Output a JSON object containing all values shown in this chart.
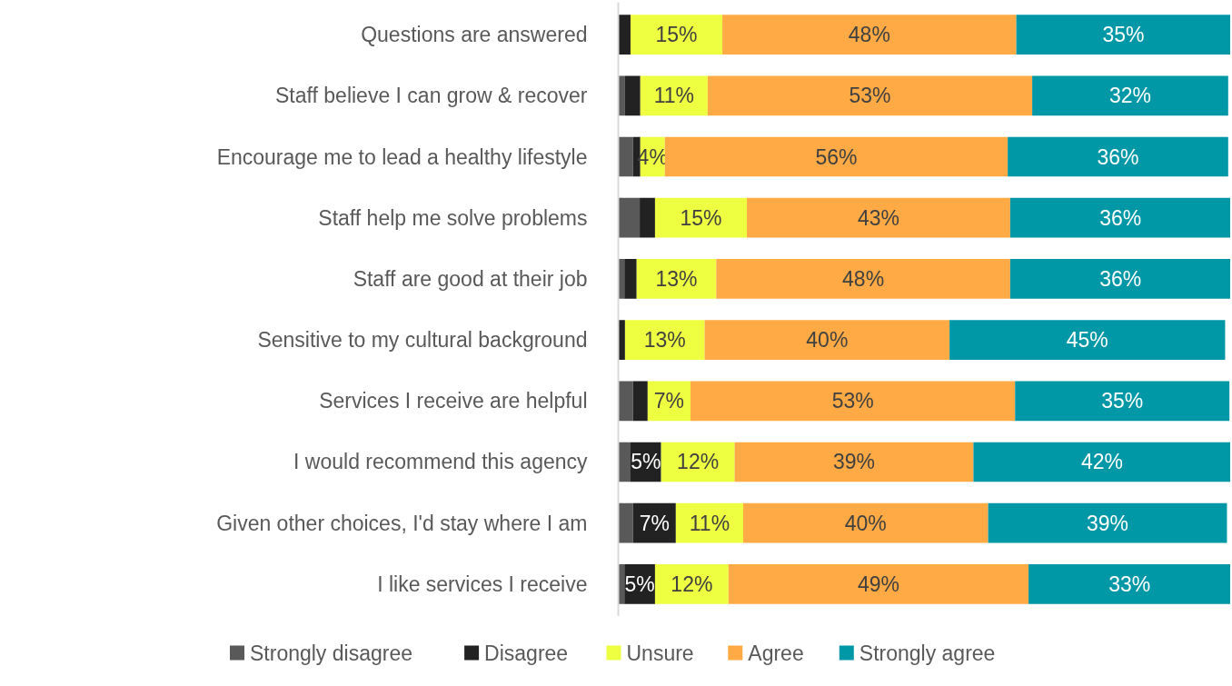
{
  "chart_data": {
    "type": "bar",
    "orientation": "horizontal",
    "stacked": true,
    "categories": [
      "Questions are answered",
      "Staff believe I can grow & recover",
      "Encourage me to lead a healthy lifestyle",
      "Staff help me solve problems",
      "Staff are good at their job",
      "Sensitive to my cultural background",
      "Services I receive are helpful",
      "I would recommend this agency",
      "Given other choices, I'd stay where I am",
      "I like services I receive"
    ],
    "series": [
      {
        "name": "Strongly disagree",
        "color": "#595959",
        "values": [
          0,
          1.1,
          2.4,
          3.5,
          1,
          0,
          2.4,
          2,
          2.4,
          1
        ],
        "value_labels": [
          null,
          null,
          null,
          null,
          null,
          null,
          null,
          null,
          null,
          null
        ]
      },
      {
        "name": "Disagree",
        "color": "#222222",
        "values": [
          2,
          2.5,
          1.2,
          2.5,
          2,
          1.1,
          2.4,
          5,
          7,
          5
        ],
        "value_labels": [
          null,
          null,
          null,
          null,
          null,
          null,
          null,
          "5%",
          "7%",
          "5%"
        ]
      },
      {
        "name": "Unsure",
        "color": "#eeff41",
        "values": [
          15,
          11,
          4,
          15,
          13,
          13,
          7,
          12,
          11,
          12
        ],
        "value_labels": [
          "15%",
          "11%",
          "4%",
          "15%",
          "13%",
          "13%",
          "7%",
          "12%",
          "11%",
          "12%"
        ]
      },
      {
        "name": "Agree",
        "color": "#ffaa44",
        "values": [
          48,
          53,
          56,
          43,
          48,
          40,
          53,
          39,
          40,
          49
        ],
        "value_labels": [
          "48%",
          "53%",
          "56%",
          "43%",
          "48%",
          "40%",
          "53%",
          "39%",
          "40%",
          "49%"
        ]
      },
      {
        "name": "Strongly agree",
        "color": "#0097a7",
        "values": [
          35,
          32,
          36,
          36,
          36,
          45,
          35,
          42,
          39,
          33
        ],
        "value_labels": [
          "35%",
          "32%",
          "36%",
          "36%",
          "36%",
          "45%",
          "35%",
          "42%",
          "39%",
          "33%"
        ]
      }
    ],
    "xlim": [
      0,
      100
    ],
    "tick_labels": "y",
    "legend": "bottom"
  }
}
